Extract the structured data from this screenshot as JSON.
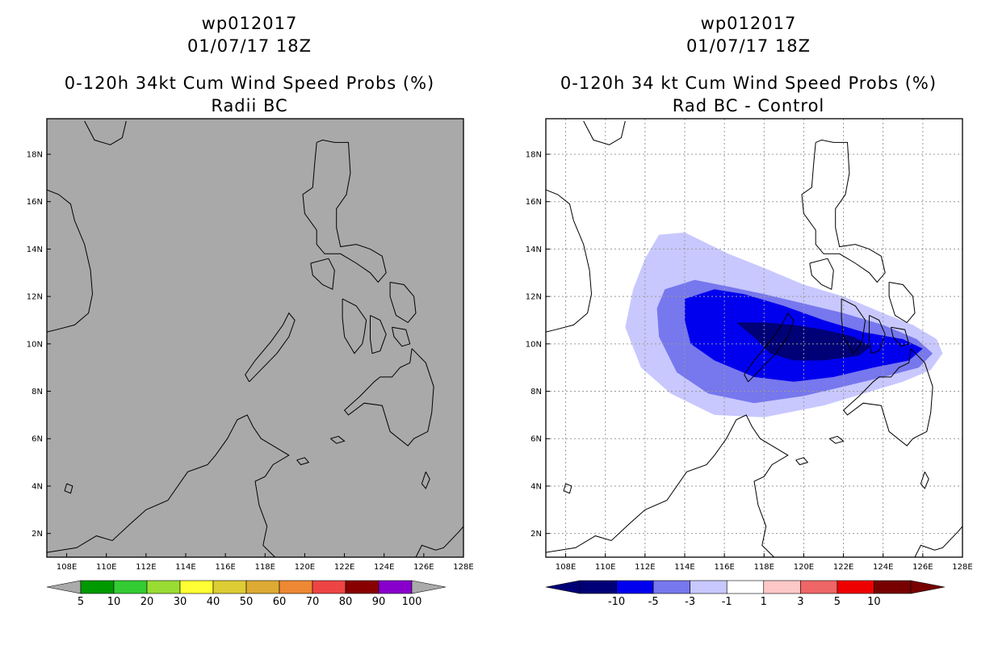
{
  "panels": [
    {
      "id": "left",
      "title_line1": "wp012017",
      "title_line2": "01/07/17 18Z",
      "title_line3": "0-120h 34kt Cum Wind Speed Probs (%)",
      "title_line4": "Radii BC",
      "background": "#a9a9a9",
      "gridlines": false
    },
    {
      "id": "right",
      "title_line1": "wp012017",
      "title_line2": "01/07/17 18Z",
      "title_line3": "0-120h 34 kt Cum Wind Speed Probs (%)",
      "title_line4": "Rad BC - Control",
      "background": "#ffffff",
      "gridlines": true
    }
  ],
  "chart_data": [
    {
      "type": "heatmap",
      "title": "0-120h 34kt Cum Wind Speed Probs (%) Radii BC",
      "xlim": [
        107,
        128
      ],
      "ylim": [
        1,
        19.5
      ],
      "x_ticks": [
        "108E",
        "110E",
        "112E",
        "114E",
        "116E",
        "118E",
        "120E",
        "122E",
        "124E",
        "126E",
        "128E"
      ],
      "x_tick_values": [
        108,
        110,
        112,
        114,
        116,
        118,
        120,
        122,
        124,
        126,
        128
      ],
      "y_ticks": [
        "2N",
        "4N",
        "6N",
        "8N",
        "10N",
        "12N",
        "14N",
        "16N",
        "18N"
      ],
      "y_tick_values": [
        2,
        4,
        6,
        8,
        10,
        12,
        14,
        16,
        18
      ],
      "field": "none (uniformly below 5%)",
      "colorbar": {
        "labels": [
          "5",
          "10",
          "20",
          "30",
          "40",
          "50",
          "60",
          "70",
          "80",
          "90",
          "100"
        ],
        "colors": [
          "#009900",
          "#33cc33",
          "#99dd33",
          "#ffff33",
          "#ddcc33",
          "#ddaa33",
          "#ee8833",
          "#ee4444",
          "#880000",
          "#8800cc"
        ],
        "under_color": "#aaaaaa",
        "over_color": "#aaaaaa"
      }
    },
    {
      "type": "heatmap",
      "title": "0-120h 34 kt Cum Wind Speed Probs (%) Rad BC - Control",
      "xlim": [
        107,
        128
      ],
      "ylim": [
        1,
        19.5
      ],
      "x_ticks": [
        "108E",
        "110E",
        "112E",
        "114E",
        "116E",
        "118E",
        "120E",
        "122E",
        "124E",
        "126E",
        "128E"
      ],
      "x_tick_values": [
        108,
        110,
        112,
        114,
        116,
        118,
        120,
        122,
        124,
        126,
        128
      ],
      "y_ticks": [
        "2N",
        "4N",
        "6N",
        "8N",
        "10N",
        "12N",
        "14N",
        "16N",
        "18N"
      ],
      "y_tick_values": [
        2,
        4,
        6,
        8,
        10,
        12,
        14,
        16,
        18
      ],
      "contour_levels": [
        {
          "range": "-3 to -1",
          "color": "#c8c8ff",
          "polygon": [
            [
              112.7,
              14.6
            ],
            [
              114.0,
              14.7
            ],
            [
              116.2,
              13.8
            ],
            [
              118.0,
              13.2
            ],
            [
              120.0,
              12.5
            ],
            [
              122.0,
              12.0
            ],
            [
              124.0,
              11.3
            ],
            [
              125.5,
              10.8
            ],
            [
              126.7,
              10.2
            ],
            [
              127.0,
              9.6
            ],
            [
              126.4,
              8.9
            ],
            [
              125.0,
              8.4
            ],
            [
              123.0,
              7.9
            ],
            [
              121.0,
              7.4
            ],
            [
              118.0,
              6.9
            ],
            [
              115.5,
              7.0
            ],
            [
              113.3,
              7.9
            ],
            [
              111.8,
              9.0
            ],
            [
              111.0,
              10.7
            ],
            [
              111.4,
              12.3
            ],
            [
              112.0,
              13.6
            ]
          ]
        },
        {
          "range": "-5 to -3",
          "color": "#7777ee",
          "polygon": [
            [
              113.0,
              12.3
            ],
            [
              114.5,
              12.7
            ],
            [
              116.3,
              12.4
            ],
            [
              118.0,
              12.1
            ],
            [
              120.0,
              11.7
            ],
            [
              122.0,
              11.3
            ],
            [
              124.0,
              10.8
            ],
            [
              125.7,
              10.2
            ],
            [
              126.5,
              9.6
            ],
            [
              125.8,
              9.0
            ],
            [
              124.0,
              8.6
            ],
            [
              122.0,
              8.2
            ],
            [
              120.0,
              7.8
            ],
            [
              117.5,
              7.5
            ],
            [
              115.2,
              7.9
            ],
            [
              113.6,
              8.8
            ],
            [
              112.7,
              10.3
            ],
            [
              112.6,
              11.5
            ]
          ]
        },
        {
          "range": "-10 to -5",
          "color": "#0000ee",
          "polygon": [
            [
              114.0,
              11.9
            ],
            [
              115.5,
              12.3
            ],
            [
              117.0,
              12.1
            ],
            [
              119.0,
              11.6
            ],
            [
              121.0,
              11.0
            ],
            [
              123.0,
              10.5
            ],
            [
              125.0,
              10.2
            ],
            [
              126.0,
              9.8
            ],
            [
              125.3,
              9.3
            ],
            [
              123.5,
              9.0
            ],
            [
              121.5,
              8.6
            ],
            [
              119.5,
              8.4
            ],
            [
              117.5,
              8.6
            ],
            [
              115.5,
              9.3
            ],
            [
              114.3,
              10.0
            ],
            [
              114.0,
              11.0
            ]
          ]
        },
        {
          "range": "< -10",
          "color": "#000077",
          "polygon": [
            [
              116.6,
              10.9
            ],
            [
              118.0,
              10.9
            ],
            [
              119.5,
              10.8
            ],
            [
              121.0,
              10.6
            ],
            [
              122.5,
              10.3
            ],
            [
              123.4,
              9.9
            ],
            [
              122.8,
              9.5
            ],
            [
              121.0,
              9.3
            ],
            [
              119.5,
              9.3
            ],
            [
              118.3,
              9.6
            ],
            [
              117.6,
              10.2
            ]
          ]
        }
      ],
      "colorbar": {
        "labels": [
          "-10",
          "-5",
          "-3",
          "-1",
          "1",
          "3",
          "5",
          "10"
        ],
        "colors": [
          "#000077",
          "#0000ee",
          "#7777ee",
          "#c8c8ff",
          "#ffffff",
          "#ffc8c8",
          "#ee6666",
          "#ee0000",
          "#770000"
        ],
        "under_color": "#000077",
        "over_color": "#770000"
      }
    }
  ]
}
